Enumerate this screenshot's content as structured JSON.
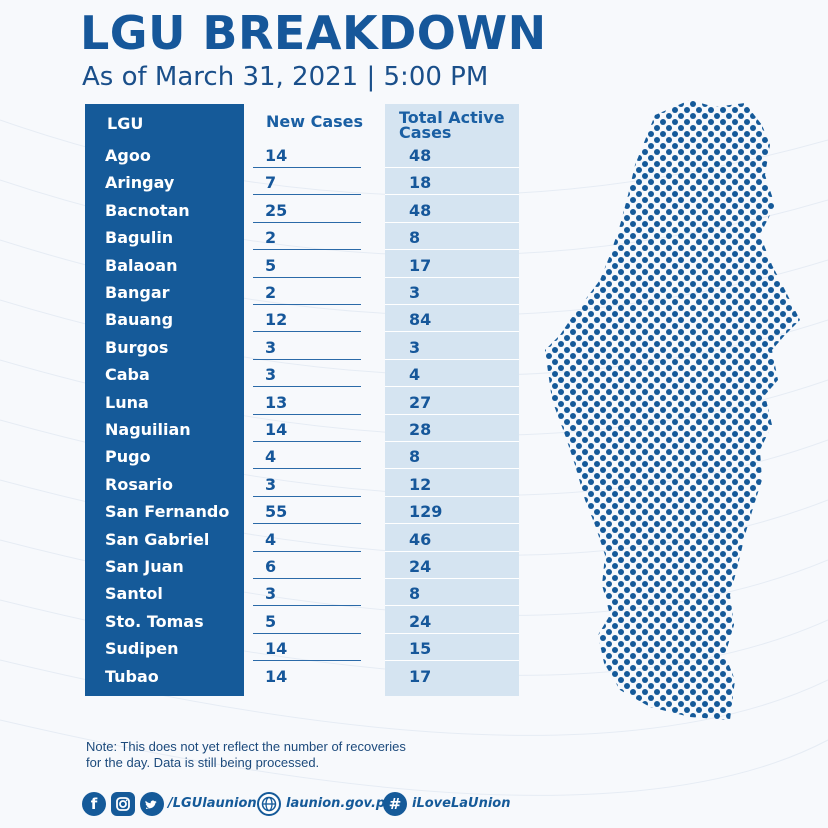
{
  "header": {
    "title": "LGU BREAKDOWN",
    "subtitle": "As of March 31, 2021 | 5:00 PM"
  },
  "table": {
    "columns": [
      "LGU",
      "New Cases",
      "Total Active Cases"
    ],
    "rows": [
      {
        "lgu": "Agoo",
        "new": "14",
        "total": "48"
      },
      {
        "lgu": "Aringay",
        "new": "7",
        "total": "18"
      },
      {
        "lgu": "Bacnotan",
        "new": "25",
        "total": "48"
      },
      {
        "lgu": "Bagulin",
        "new": "2",
        "total": "8"
      },
      {
        "lgu": "Balaoan",
        "new": "5",
        "total": "17"
      },
      {
        "lgu": "Bangar",
        "new": "2",
        "total": "3"
      },
      {
        "lgu": "Bauang",
        "new": "12",
        "total": "84"
      },
      {
        "lgu": "Burgos",
        "new": "3",
        "total": "3"
      },
      {
        "lgu": "Caba",
        "new": "3",
        "total": "4"
      },
      {
        "lgu": "Luna",
        "new": "13",
        "total": "27"
      },
      {
        "lgu": "Naguilian",
        "new": "14",
        "total": "28"
      },
      {
        "lgu": "Pugo",
        "new": "4",
        "total": "8"
      },
      {
        "lgu": "Rosario",
        "new": "3",
        "total": "12"
      },
      {
        "lgu": "San Fernando",
        "new": "55",
        "total": "129"
      },
      {
        "lgu": "San Gabriel",
        "new": "4",
        "total": "46"
      },
      {
        "lgu": "San Juan",
        "new": "6",
        "total": "24"
      },
      {
        "lgu": "Santol",
        "new": "3",
        "total": "8"
      },
      {
        "lgu": "Sto. Tomas",
        "new": "5",
        "total": "24"
      },
      {
        "lgu": "Sudipen",
        "new": "14",
        "total": "15"
      },
      {
        "lgu": "Tubao",
        "new": "14",
        "total": "17"
      }
    ]
  },
  "note": {
    "line1": "Note: This does not yet reflect the number of recoveries",
    "line2": "for the day. Data is still being processed."
  },
  "footer": {
    "social_handle": "/LGUlaunion",
    "website": "launion.gov.ph",
    "hashtag": "iLoveLaUnion"
  },
  "icons": [
    "facebook-icon",
    "instagram-icon",
    "twitter-icon",
    "web-icon",
    "hashtag-icon"
  ],
  "colors": {
    "primary": "#155a99",
    "light_column": "#d5e4f1",
    "background": "#f7f9fc"
  }
}
